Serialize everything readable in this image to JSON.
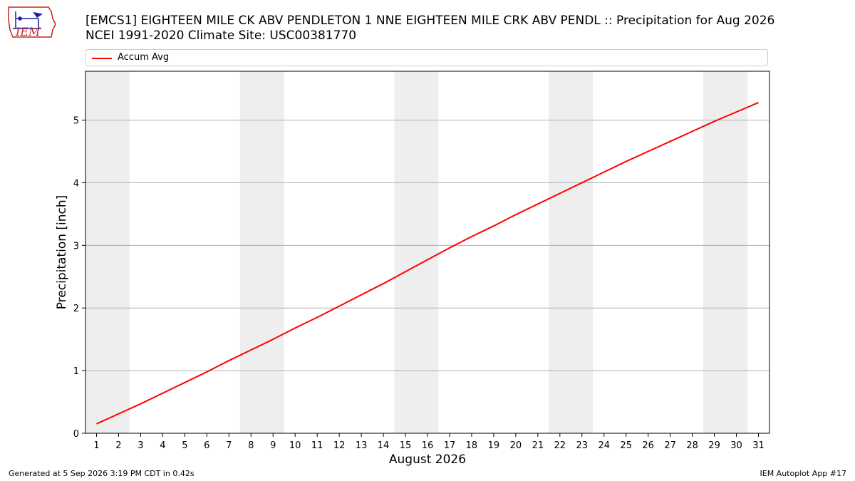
{
  "header": {
    "title_line1": "[EMCS1] EIGHTEEN MILE CK ABV PENDLETON 1 NNE EIGHTEEN MILE CRK ABV PENDL :: Precipitation for Aug 2026",
    "title_line2": "NCEI 1991-2020 Climate Site: USC00381770",
    "logo_text": "IEM"
  },
  "footer": {
    "generated": "Generated at 5 Sep 2026 3:19 PM CDT in 0.42s",
    "app": "IEM Autoplot App #17"
  },
  "colors": {
    "series": "#ff0000",
    "weekend_band": "#eeeeee",
    "grid": "#b0b0b0",
    "logo_red": "#cc2222",
    "logo_blue": "#1a1aaa"
  },
  "chart_data": {
    "type": "line",
    "xlabel": "August 2026",
    "ylabel": "Precipitation [inch]",
    "xlim": [
      0.5,
      31.5
    ],
    "ylim": [
      0,
      5.78
    ],
    "x": [
      1,
      2,
      3,
      4,
      5,
      6,
      7,
      8,
      9,
      10,
      11,
      12,
      13,
      14,
      15,
      16,
      17,
      18,
      19,
      20,
      21,
      22,
      23,
      24,
      25,
      26,
      27,
      28,
      29,
      30,
      31
    ],
    "x_ticks": [
      1,
      2,
      3,
      4,
      5,
      6,
      7,
      8,
      9,
      10,
      11,
      12,
      13,
      14,
      15,
      16,
      17,
      18,
      19,
      20,
      21,
      22,
      23,
      24,
      25,
      26,
      27,
      28,
      29,
      30,
      31
    ],
    "y_ticks": [
      0,
      1,
      2,
      3,
      4,
      5
    ],
    "grid": "y",
    "legend": "top",
    "weekend_bands": [
      [
        0.5,
        2.5
      ],
      [
        7.5,
        9.5
      ],
      [
        14.5,
        16.5
      ],
      [
        21.5,
        23.5
      ],
      [
        28.5,
        30.5
      ]
    ],
    "series": [
      {
        "name": "Accum Avg",
        "values": [
          0.15,
          0.31,
          0.47,
          0.64,
          0.81,
          0.98,
          1.16,
          1.33,
          1.5,
          1.68,
          1.85,
          2.03,
          2.21,
          2.39,
          2.58,
          2.77,
          2.96,
          3.14,
          3.31,
          3.49,
          3.66,
          3.83,
          4.0,
          4.17,
          4.34,
          4.5,
          4.66,
          4.82,
          4.98,
          5.13,
          5.28
        ]
      }
    ]
  }
}
